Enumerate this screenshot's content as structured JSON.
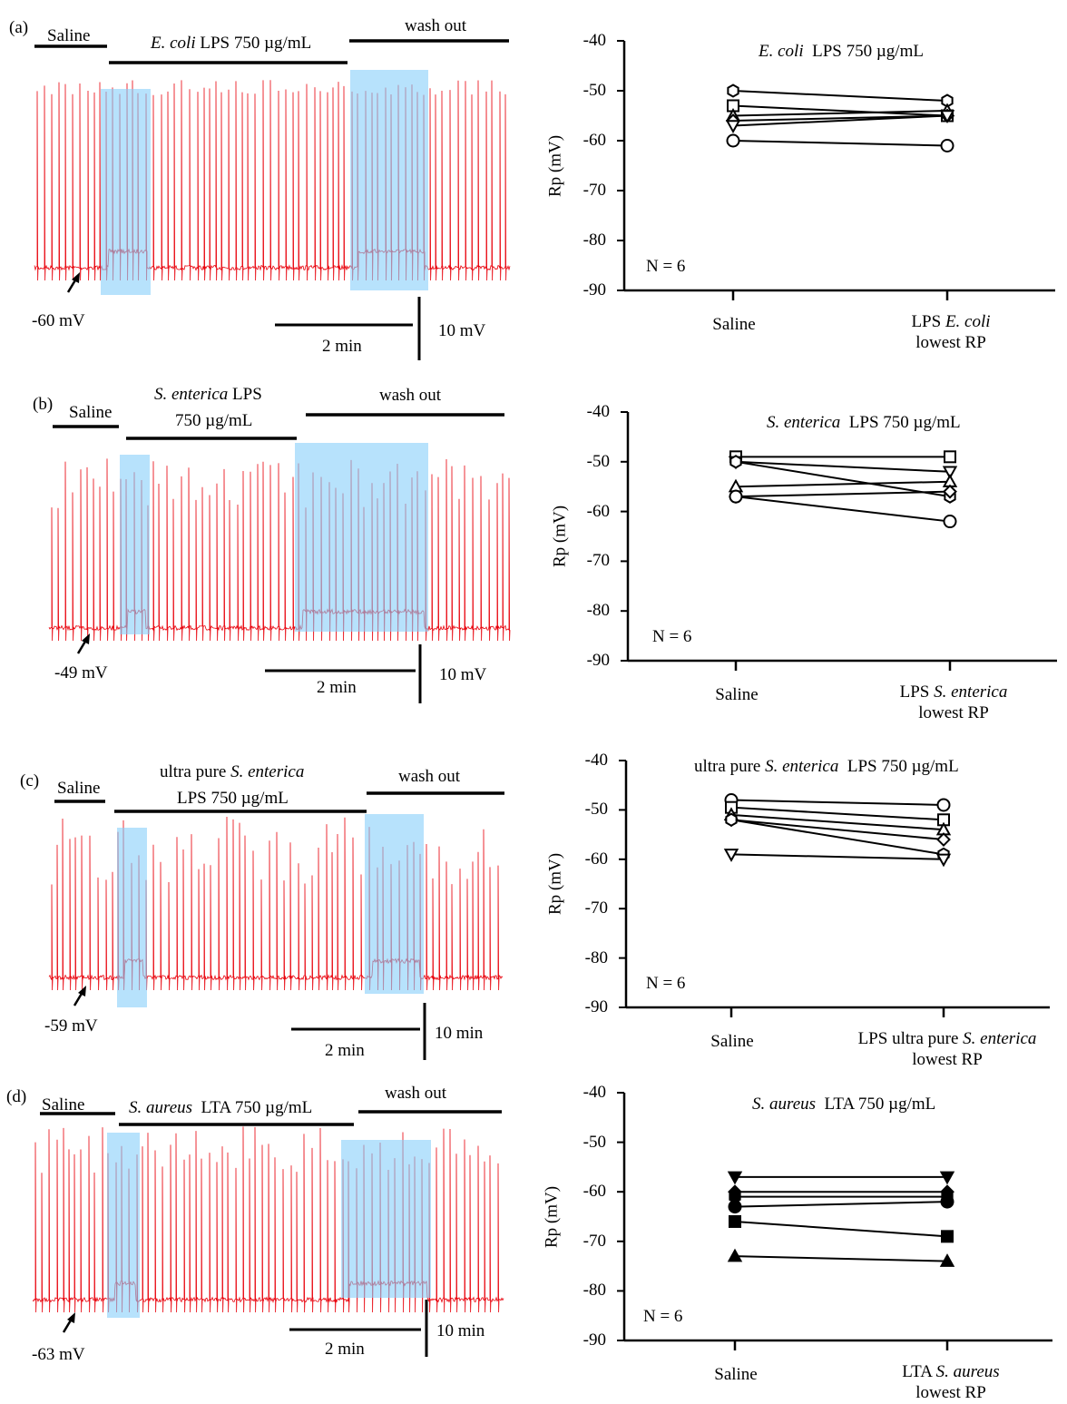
{
  "panels": [
    {
      "label": "(a)",
      "saline": "Saline",
      "treatment": {
        "line1_italic": "E. coli",
        "line1_rest": " LPS 750 µg/mL"
      },
      "washout": "wash out",
      "resting_potential": "-60 mV",
      "time_scale": "2 min",
      "amp_scale": "10 mV"
    },
    {
      "label": "(b)",
      "saline": "Saline",
      "treatment": {
        "line1_italic": "S. enterica",
        "line1_rest": " LPS",
        "line2": "750 µg/mL"
      },
      "washout": "wash out",
      "resting_potential": "-49 mV",
      "time_scale": "2 min",
      "amp_scale": "10 mV"
    },
    {
      "label": "(c)",
      "saline": "Saline",
      "treatment": {
        "line1_pre": "ultra pure ",
        "line1_italic": "S. enterica",
        "line2": "LPS 750 µg/mL"
      },
      "washout": "wash out",
      "resting_potential": "-59 mV",
      "time_scale": "2 min",
      "amp_scale": "10 min"
    },
    {
      "label": "(d)",
      "saline": "Saline",
      "treatment": {
        "line1_italic": "S. aureus",
        "line1_rest": "  LTA 750 µg/mL"
      },
      "washout": "wash out",
      "resting_potential": "-63 mV",
      "time_scale": "2 min",
      "amp_scale": "10 min"
    }
  ],
  "trace_colors": {
    "trace": "#e8000a",
    "highlight": "#87cefa"
  },
  "chart_data": [
    {
      "type": "line",
      "title": {
        "italic": "E. coli",
        "rest": "  LPS 750 µg/mL"
      },
      "ylabel": "Rp (mV)",
      "ylim": [
        -90,
        -40
      ],
      "yticks": [
        "-40",
        "-50",
        "-60",
        "-70",
        "-80",
        "-90"
      ],
      "annotation": "N = 6",
      "categories": [
        {
          "line1": "Saline"
        },
        {
          "pre": "LPS ",
          "italic": "E. coli",
          "line2": "lowest RP"
        }
      ],
      "filled": false,
      "series": [
        {
          "marker": "hexagon",
          "values": [
            -50,
            -52
          ]
        },
        {
          "marker": "square",
          "values": [
            -53,
            -55
          ]
        },
        {
          "marker": "triangle-up",
          "values": [
            -55,
            -54
          ]
        },
        {
          "marker": "diamond",
          "values": [
            -56,
            -55
          ]
        },
        {
          "marker": "triangle-down",
          "values": [
            -57,
            -55
          ]
        },
        {
          "marker": "circle",
          "values": [
            -60,
            -61
          ]
        }
      ]
    },
    {
      "type": "line",
      "title": {
        "italic": "S. enterica",
        "rest": "  LPS 750 µg/mL"
      },
      "ylabel": "Rp (mV)",
      "ylim": [
        -90,
        -40
      ],
      "yticks": [
        "-40",
        "-50",
        "-60",
        "-70",
        "-80",
        "-90"
      ],
      "annotation": "N = 6",
      "categories": [
        {
          "line1": "Saline"
        },
        {
          "pre": "LPS ",
          "italic": "S. enterica",
          "line2": "lowest RP"
        }
      ],
      "filled": false,
      "series": [
        {
          "marker": "square",
          "values": [
            -49,
            -49
          ]
        },
        {
          "marker": "triangle-down",
          "values": [
            -50,
            -52
          ]
        },
        {
          "marker": "hexagon",
          "values": [
            -50,
            -57
          ]
        },
        {
          "marker": "triangle-up",
          "values": [
            -55,
            -54
          ]
        },
        {
          "marker": "diamond",
          "values": [
            -57,
            -56
          ]
        },
        {
          "marker": "circle",
          "values": [
            -57,
            -62
          ]
        }
      ]
    },
    {
      "type": "line",
      "title": {
        "pre": "ultra pure ",
        "italic": "S. enterica",
        "rest": "  LPS 750 µg/mL"
      },
      "ylabel": "Rp (mV)",
      "ylim": [
        -90,
        -40
      ],
      "yticks": [
        "-40",
        "-50",
        "-60",
        "-70",
        "-80",
        "-90"
      ],
      "annotation": "N = 6",
      "categories": [
        {
          "line1": "Saline"
        },
        {
          "pre": "LPS ultra pure ",
          "italic": "S. enterica",
          "line2": "lowest RP"
        }
      ],
      "filled": false,
      "series": [
        {
          "marker": "circle",
          "values": [
            -48,
            -49
          ]
        },
        {
          "marker": "square",
          "values": [
            -49.5,
            -52
          ]
        },
        {
          "marker": "triangle-up",
          "values": [
            -51,
            -54
          ]
        },
        {
          "marker": "diamond",
          "values": [
            -52,
            -56
          ]
        },
        {
          "marker": "hexagon",
          "values": [
            -52,
            -59
          ]
        },
        {
          "marker": "triangle-down",
          "values": [
            -59,
            -60
          ]
        }
      ]
    },
    {
      "type": "line",
      "title": {
        "italic": "S. aureus",
        "rest": "  LTA 750 µg/mL"
      },
      "ylabel": "Rp (mV)",
      "ylim": [
        -90,
        -40
      ],
      "yticks": [
        "-40",
        "-50",
        "-60",
        "-70",
        "-80",
        "-90"
      ],
      "annotation": "N = 6",
      "categories": [
        {
          "line1": "Saline"
        },
        {
          "pre": "LTA ",
          "italic": "S. aureus",
          "line2": "lowest RP"
        }
      ],
      "filled": true,
      "series": [
        {
          "marker": "triangle-down",
          "values": [
            -57,
            -57
          ]
        },
        {
          "marker": "diamond",
          "values": [
            -60,
            -60
          ]
        },
        {
          "marker": "hexagon",
          "values": [
            -61,
            -61
          ]
        },
        {
          "marker": "circle",
          "values": [
            -63,
            -62
          ]
        },
        {
          "marker": "square",
          "values": [
            -66,
            -69
          ]
        },
        {
          "marker": "triangle-up",
          "values": [
            -73,
            -74
          ]
        }
      ]
    }
  ]
}
